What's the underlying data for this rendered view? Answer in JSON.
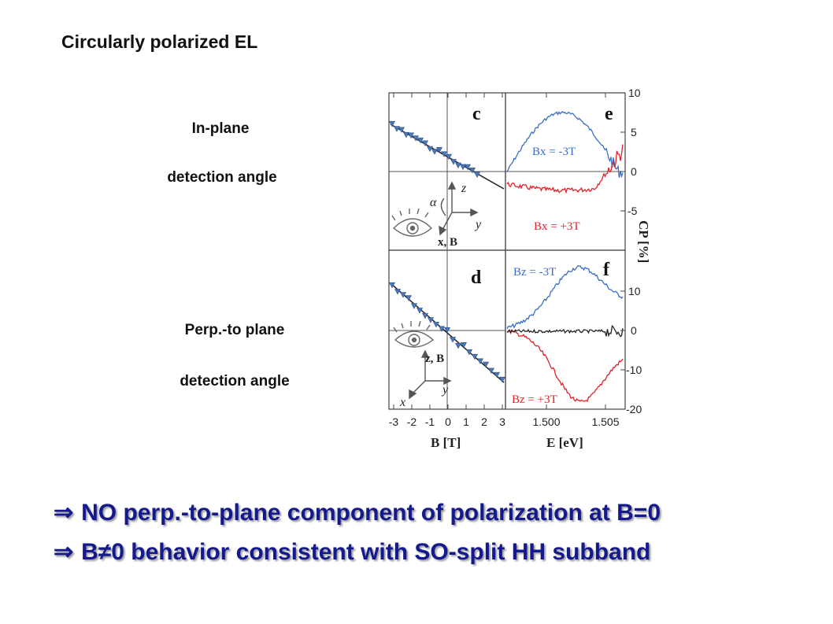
{
  "title": "Circularly polarized EL",
  "labels": {
    "inplane_line1": "In-plane",
    "inplane_line2": "detection angle",
    "perp_line1": "Perp.-to plane",
    "perp_line2": "detection angle"
  },
  "bullets": [
    {
      "arrow": "⇒",
      "text": "NO perp.-to-plane component of polarization at B=0"
    },
    {
      "arrow": "⇒",
      "text": "B≠0 behavior consistent with SO-split HH subband"
    }
  ],
  "figure": {
    "panel_c": "c",
    "panel_d": "d",
    "panel_e": "e",
    "panel_f": "f",
    "x_label_left": "B [T]",
    "x_label_right": "E [eV]",
    "y_label_right": "CP [%]",
    "x_ticks_left": [
      "-3",
      "-2",
      "-1",
      "0",
      "1",
      "2",
      "3"
    ],
    "x_ticks_right": [
      "1.500",
      "1.505"
    ],
    "y_ticks_top": [
      "10",
      "5",
      "0",
      "-5"
    ],
    "y_ticks_bottom": [
      "10",
      "0",
      "-10",
      "-20"
    ],
    "legend_e_blue": "Bx = -3T",
    "legend_e_red": "Bx = +3T",
    "legend_f_blue": "Bz = -3T",
    "legend_f_red": "Bz = +3T",
    "geom_top": {
      "alpha": "α",
      "z": "z",
      "y": "y",
      "xB": "x, B"
    },
    "geom_bottom": {
      "zB": "z, B",
      "y": "y",
      "x": "x"
    },
    "colors": {
      "blue": "#3a6fc4",
      "red": "#e0222a",
      "black": "#222222"
    }
  }
}
